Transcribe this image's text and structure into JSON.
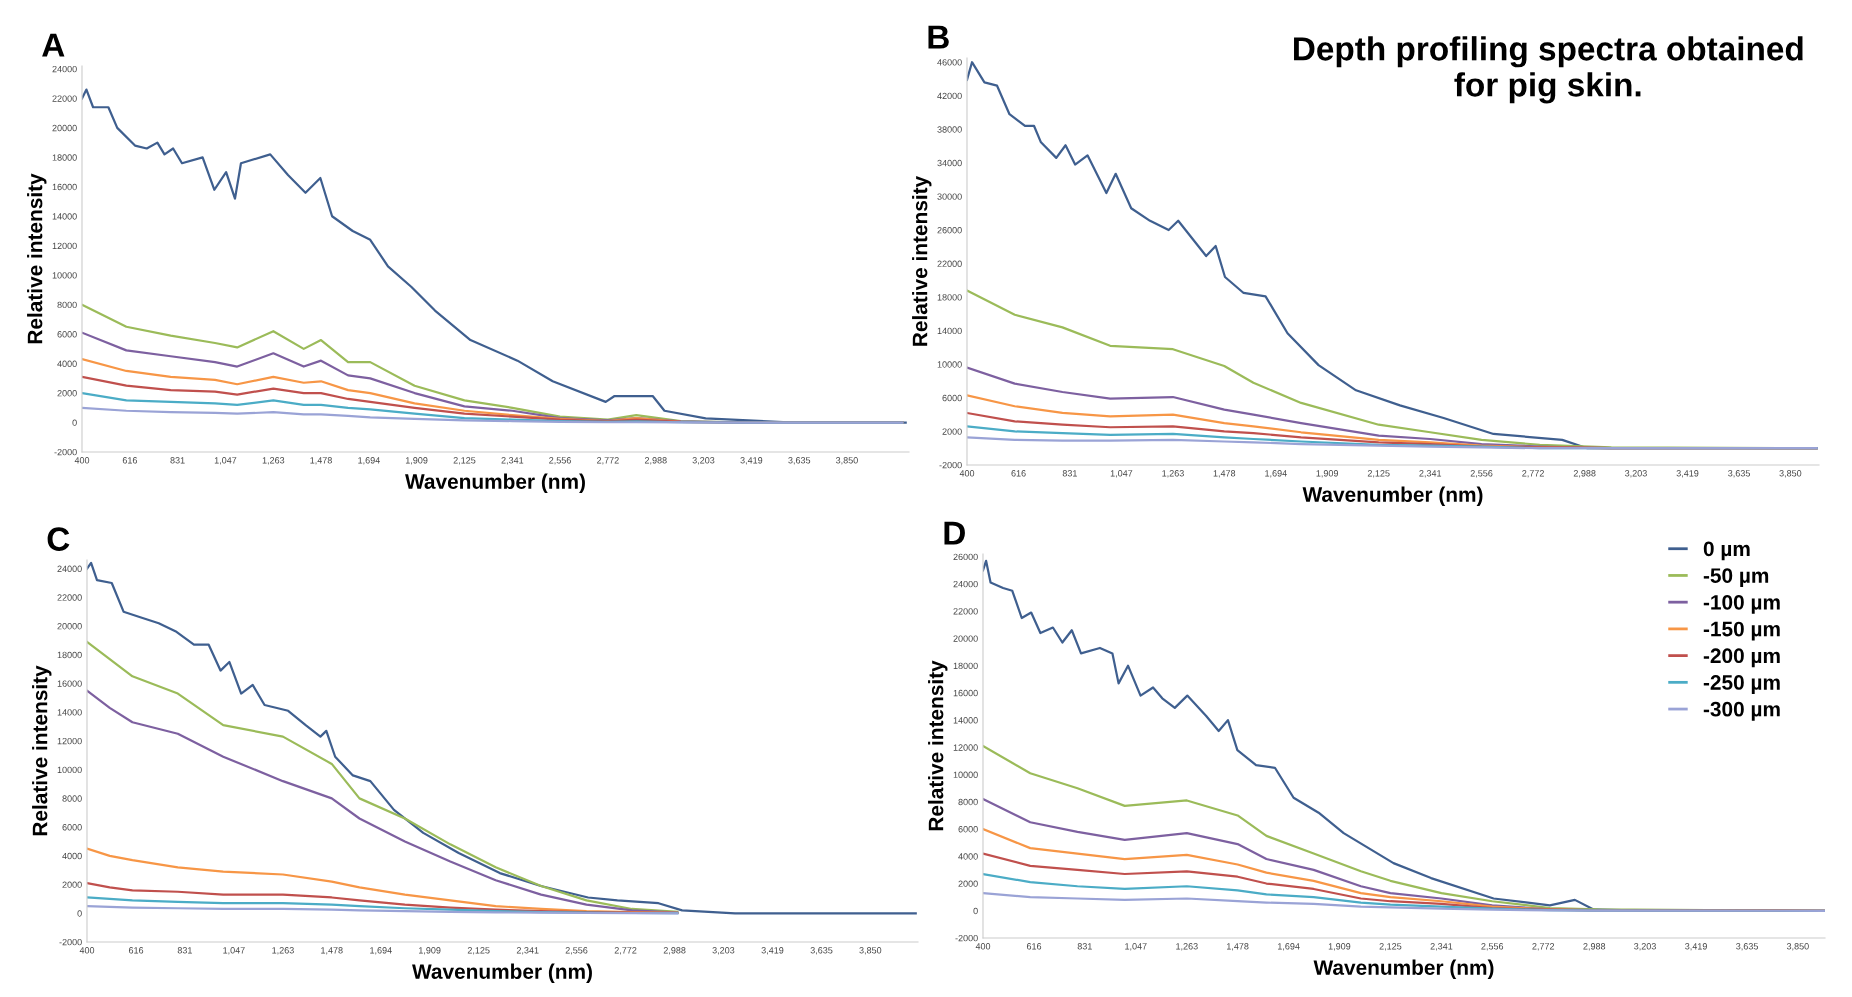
{
  "chart_data": [
    {
      "type": "line",
      "title": "A",
      "xlabel": "Wavenumber (nm)",
      "ylabel": "Relative intensity",
      "xlim": [
        400,
        4130
      ],
      "ylim": [
        -2000,
        24200
      ],
      "xticks": [
        400,
        616,
        831,
        {
          "value": 1047,
          "label": "1,047"
        },
        {
          "value": 1263,
          "label": "1,263"
        },
        {
          "value": 1478,
          "label": "1,478"
        },
        {
          "value": 1694,
          "label": "1,694"
        },
        {
          "value": 1909,
          "label": "1,909"
        },
        {
          "value": 2125,
          "label": "2,125"
        },
        {
          "value": 2341,
          "label": "2,341"
        },
        {
          "value": 2556,
          "label": "2,556"
        },
        {
          "value": 2772,
          "label": "2,772"
        },
        {
          "value": 2988,
          "label": "2,988"
        },
        {
          "value": 3203,
          "label": "3,203"
        },
        {
          "value": 3419,
          "label": "3,419"
        },
        {
          "value": 3635,
          "label": "3,635"
        },
        {
          "value": 3850,
          "label": "3,850"
        }
      ],
      "yticks": [
        -2000,
        0,
        2000,
        4000,
        6000,
        8000,
        10000,
        12000,
        14000,
        16000,
        18000,
        20000,
        22000,
        24000
      ],
      "grid": false,
      "legend": false,
      "line_style": "solid",
      "marker": "none",
      "x": [
        400,
        600,
        800,
        1000,
        1100,
        1263,
        1400,
        1478,
        1600,
        1700,
        1900,
        2125,
        2341,
        2556,
        2772,
        2900,
        3100,
        3400,
        4100
      ],
      "series": [
        {
          "color": "#3f5f8f",
          "x": [
            400,
            420,
            450,
            519,
            559,
            639,
            692,
            740,
            772,
            811,
            851,
            944,
            997,
            1050,
            1090,
            1117,
            1249,
            1329,
            1408,
            1475,
            1528,
            1621,
            1700,
            1780,
            1886,
            1992,
            2152,
            2364,
            2523,
            2762,
            2802,
            2895,
            2974,
            3027,
            3213,
            3611,
            4115
          ],
          "values": [
            22000,
            22600,
            21400,
            21400,
            20000,
            18800,
            18600,
            19000,
            18200,
            18600,
            17600,
            18000,
            15800,
            17000,
            15200,
            17600,
            18200,
            16800,
            15600,
            16600,
            14000,
            13000,
            12400,
            10600,
            9200,
            7600,
            5600,
            4200,
            2800,
            1400,
            1800,
            1800,
            1800,
            800,
            280,
            0,
            0
          ]
        },
        {
          "color": "#9bbb59",
          "values": [
            8000,
            6500,
            5900,
            5400,
            5100,
            6200,
            5000,
            5600,
            4100,
            4100,
            2500,
            1500,
            1000,
            400,
            200,
            500,
            100,
            0,
            0
          ]
        },
        {
          "color": "#7d60a0",
          "values": [
            6100,
            4900,
            4500,
            4100,
            3800,
            4700,
            3800,
            4200,
            3200,
            3000,
            2000,
            1100,
            800,
            300,
            150,
            300,
            80,
            0,
            0
          ]
        },
        {
          "color": "#f79646",
          "values": [
            4300,
            3500,
            3100,
            2900,
            2600,
            3100,
            2700,
            2800,
            2200,
            2000,
            1300,
            800,
            500,
            250,
            100,
            300,
            50,
            0,
            0
          ]
        },
        {
          "color": "#c0504d",
          "values": [
            3100,
            2500,
            2200,
            2100,
            1900,
            2300,
            2000,
            2000,
            1600,
            1400,
            1000,
            600,
            400,
            200,
            80,
            200,
            40,
            0,
            0
          ]
        },
        {
          "color": "#4bacc6",
          "values": [
            2000,
            1500,
            1400,
            1300,
            1200,
            1500,
            1200,
            1200,
            1000,
            900,
            600,
            300,
            200,
            100,
            50,
            80,
            20,
            0,
            0
          ]
        },
        {
          "color": "#9aa3d6",
          "values": [
            1000,
            800,
            700,
            650,
            600,
            700,
            550,
            550,
            450,
            350,
            250,
            150,
            100,
            50,
            20,
            20,
            10,
            0,
            0
          ]
        }
      ]
    },
    {
      "type": "line",
      "title": "B",
      "xlabel": "Wavenumber (nm)",
      "ylabel": "Relative intensity",
      "xlim": [
        400,
        3970
      ],
      "ylim": [
        -2000,
        46500
      ],
      "annotations": [
        "Depth profiling spectra obtained\nfor pig skin."
      ],
      "xticks": [
        400,
        616,
        831,
        {
          "value": 1047,
          "label": "1,047"
        },
        {
          "value": 1263,
          "label": "1,263"
        },
        {
          "value": 1478,
          "label": "1,478"
        },
        {
          "value": 1694,
          "label": "1,694"
        },
        {
          "value": 1909,
          "label": "1,909"
        },
        {
          "value": 2125,
          "label": "2,125"
        },
        {
          "value": 2341,
          "label": "2,341"
        },
        {
          "value": 2556,
          "label": "2,556"
        },
        {
          "value": 2772,
          "label": "2,772"
        },
        {
          "value": 2988,
          "label": "2,988"
        },
        {
          "value": 3203,
          "label": "3,203"
        },
        {
          "value": 3419,
          "label": "3,419"
        },
        {
          "value": 3635,
          "label": "3,635"
        },
        {
          "value": 3850,
          "label": "3,850"
        }
      ],
      "yticks": [
        -2000,
        2000,
        6000,
        10000,
        14000,
        18000,
        22000,
        26000,
        30000,
        34000,
        38000,
        42000,
        46000
      ],
      "grid": false,
      "legend": false,
      "line_style": "solid",
      "marker": "none",
      "x": [
        400,
        600,
        800,
        1000,
        1263,
        1478,
        1600,
        1800,
        2125,
        2341,
        2556,
        2800,
        3100,
        3960
      ],
      "series": [
        {
          "color": "#3f5f8f",
          "x": [
            400,
            421,
            473,
            526,
            578,
            643,
            681,
            709,
            774,
            813,
            853,
            905,
            984,
            1023,
            1088,
            1167,
            1245,
            1285,
            1402,
            1442,
            1481,
            1559,
            1651,
            1743,
            1873,
            2030,
            2214,
            2397,
            2606,
            2894,
            2999,
            3914,
            3960
          ],
          "values": [
            43900,
            46000,
            43600,
            43200,
            39800,
            38400,
            38400,
            36500,
            34600,
            36100,
            33800,
            34900,
            30400,
            32700,
            28600,
            27100,
            26000,
            27100,
            22900,
            24100,
            20400,
            18500,
            18100,
            13700,
            9900,
            6900,
            5100,
            3600,
            1700,
            1000,
            0,
            0,
            0
          ]
        },
        {
          "color": "#9bbb59",
          "values": [
            18800,
            15900,
            14400,
            12200,
            11800,
            9800,
            7800,
            5400,
            2800,
            1900,
            1000,
            400,
            100,
            0
          ]
        },
        {
          "color": "#7d60a0",
          "values": [
            9600,
            7700,
            6700,
            5900,
            6100,
            4600,
            4000,
            3000,
            1500,
            1100,
            500,
            200,
            0,
            0
          ]
        },
        {
          "color": "#f79646",
          "values": [
            6300,
            5000,
            4200,
            3800,
            4000,
            3000,
            2600,
            1900,
            1000,
            700,
            300,
            100,
            0,
            0
          ]
        },
        {
          "color": "#c0504d",
          "values": [
            4200,
            3200,
            2800,
            2500,
            2600,
            2000,
            1800,
            1300,
            700,
            500,
            200,
            100,
            0,
            0
          ]
        },
        {
          "color": "#4bacc6",
          "values": [
            2600,
            2000,
            1800,
            1600,
            1700,
            1300,
            1100,
            800,
            400,
            300,
            200,
            0,
            0,
            0
          ]
        },
        {
          "color": "#9aa3d6",
          "values": [
            1300,
            1000,
            900,
            900,
            1000,
            800,
            700,
            500,
            300,
            200,
            100,
            0,
            0,
            0
          ]
        }
      ]
    },
    {
      "type": "line",
      "title": "C",
      "xlabel": "Wavenumber (nm)",
      "ylabel": "Relative intensity",
      "xlim": [
        400,
        4060
      ],
      "ylim": [
        -2000,
        24600
      ],
      "xticks": [
        400,
        616,
        831,
        {
          "value": 1047,
          "label": "1,047"
        },
        {
          "value": 1263,
          "label": "1,263"
        },
        {
          "value": 1478,
          "label": "1,478"
        },
        {
          "value": 1694,
          "label": "1,694"
        },
        {
          "value": 1909,
          "label": "1,909"
        },
        {
          "value": 2125,
          "label": "2,125"
        },
        {
          "value": 2341,
          "label": "2,341"
        },
        {
          "value": 2556,
          "label": "2,556"
        },
        {
          "value": 2772,
          "label": "2,772"
        },
        {
          "value": 2988,
          "label": "2,988"
        },
        {
          "value": 3203,
          "label": "3,203"
        },
        {
          "value": 3419,
          "label": "3,419"
        },
        {
          "value": 3635,
          "label": "3,635"
        },
        {
          "value": 3850,
          "label": "3,850"
        }
      ],
      "yticks": [
        -2000,
        0,
        2000,
        4000,
        6000,
        8000,
        10000,
        12000,
        14000,
        16000,
        18000,
        20000,
        22000,
        24000
      ],
      "grid": false,
      "legend": false,
      "line_style": "solid",
      "marker": "none",
      "x": [
        400,
        500,
        600,
        800,
        1000,
        1263,
        1478,
        1600,
        1800,
        2000,
        2200,
        2400,
        2600,
        2800,
        3000
      ],
      "series": [
        {
          "color": "#3f5f8f",
          "x": [
            400,
            418,
            444,
            509,
            561,
            638,
            716,
            794,
            871,
            936,
            988,
            1027,
            1079,
            1130,
            1182,
            1286,
            1363,
            1428,
            1454,
            1493,
            1571,
            1648,
            1752,
            1881,
            2037,
            2218,
            2399,
            2607,
            2736,
            2917,
            3021,
            3254,
            4050
          ],
          "values": [
            24000,
            24400,
            23200,
            23000,
            21000,
            20600,
            20200,
            19600,
            18700,
            18700,
            16900,
            17500,
            15300,
            15900,
            14500,
            14100,
            13100,
            12300,
            12700,
            10900,
            9600,
            9200,
            7200,
            5600,
            4200,
            2800,
            1900,
            1100,
            900,
            700,
            200,
            0,
            0
          ]
        },
        {
          "color": "#9bbb59",
          "values": [
            18900,
            17700,
            16500,
            15300,
            13100,
            12300,
            10400,
            8000,
            6600,
            4800,
            3200,
            1900,
            900,
            300,
            100
          ]
        },
        {
          "color": "#7d60a0",
          "values": [
            15500,
            14300,
            13300,
            12500,
            10900,
            9200,
            8000,
            6600,
            5000,
            3600,
            2300,
            1300,
            600,
            200,
            50
          ]
        },
        {
          "color": "#f79646",
          "values": [
            4500,
            4000,
            3700,
            3200,
            2900,
            2700,
            2200,
            1800,
            1300,
            900,
            500,
            300,
            150,
            80,
            30
          ]
        },
        {
          "color": "#c0504d",
          "values": [
            2100,
            1800,
            1600,
            1500,
            1300,
            1300,
            1100,
            900,
            600,
            400,
            250,
            150,
            80,
            40,
            20
          ]
        },
        {
          "color": "#4bacc6",
          "values": [
            1100,
            1000,
            900,
            800,
            700,
            700,
            600,
            500,
            350,
            250,
            150,
            80,
            40,
            20,
            10
          ]
        },
        {
          "color": "#9aa3d6",
          "values": [
            500,
            450,
            400,
            350,
            300,
            300,
            250,
            200,
            150,
            100,
            60,
            40,
            20,
            10,
            0
          ]
        }
      ]
    },
    {
      "type": "line",
      "title": "D",
      "xlabel": "Wavenumber (nm)",
      "ylabel": "Relative intensity",
      "xlim": [
        400,
        3965
      ],
      "ylim": [
        -2000,
        26200
      ],
      "xticks": [
        400,
        616,
        831,
        {
          "value": 1047,
          "label": "1,047"
        },
        {
          "value": 1263,
          "label": "1,263"
        },
        {
          "value": 1478,
          "label": "1,478"
        },
        {
          "value": 1694,
          "label": "1,694"
        },
        {
          "value": 1909,
          "label": "1,909"
        },
        {
          "value": 2125,
          "label": "2,125"
        },
        {
          "value": 2341,
          "label": "2,341"
        },
        {
          "value": 2556,
          "label": "2,556"
        },
        {
          "value": 2772,
          "label": "2,772"
        },
        {
          "value": 2988,
          "label": "2,988"
        },
        {
          "value": 3203,
          "label": "3,203"
        },
        {
          "value": 3419,
          "label": "3,419"
        },
        {
          "value": 3635,
          "label": "3,635"
        },
        {
          "value": 3850,
          "label": "3,850"
        }
      ],
      "yticks": [
        -2000,
        0,
        2000,
        4000,
        6000,
        8000,
        10000,
        12000,
        14000,
        16000,
        18000,
        20000,
        22000,
        24000,
        26000
      ],
      "grid": false,
      "legend": "right",
      "line_style": "solid",
      "marker": "none",
      "x": [
        400,
        600,
        800,
        1000,
        1263,
        1478,
        1600,
        1800,
        2000,
        2125,
        2341,
        2556,
        2800,
        3000,
        3960
      ],
      "series": [
        {
          "name": "0 µm",
          "color": "#3f5f8f",
          "x": [
            400,
            413,
            432,
            485,
            524,
            564,
            604,
            643,
            696,
            736,
            776,
            815,
            895,
            948,
            974,
            1014,
            1067,
            1120,
            1159,
            1212,
            1265,
            1345,
            1398,
            1437,
            1477,
            1556,
            1636,
            1715,
            1821,
            1927,
            2138,
            2297,
            2562,
            2800,
            2906,
            2985,
            3223,
            3960
          ],
          "values": [
            25000,
            25700,
            24100,
            23700,
            23500,
            21500,
            21900,
            20400,
            20800,
            19700,
            20600,
            18900,
            19300,
            18900,
            16700,
            18000,
            15800,
            16400,
            15600,
            14900,
            15800,
            14300,
            13200,
            14000,
            11800,
            10700,
            10500,
            8300,
            7200,
            5700,
            3500,
            2400,
            900,
            400,
            800,
            100,
            0,
            0
          ]
        },
        {
          "name": "-50 µm",
          "color": "#9bbb59",
          "values": [
            12100,
            10100,
            9000,
            7700,
            8100,
            7000,
            5500,
            4200,
            2900,
            2200,
            1300,
            700,
            200,
            100,
            0
          ]
        },
        {
          "name": "-100 µm",
          "color": "#7d60a0",
          "values": [
            8200,
            6500,
            5800,
            5200,
            5700,
            4900,
            3800,
            3000,
            1800,
            1300,
            900,
            400,
            100,
            50,
            0
          ]
        },
        {
          "name": "-150 µm",
          "color": "#f79646",
          "values": [
            6000,
            4600,
            4200,
            3800,
            4100,
            3400,
            2800,
            2200,
            1300,
            1000,
            700,
            300,
            100,
            30,
            0
          ]
        },
        {
          "name": "-200 µm",
          "color": "#c0504d",
          "values": [
            4200,
            3300,
            3000,
            2700,
            2900,
            2500,
            2000,
            1600,
            900,
            700,
            500,
            200,
            80,
            20,
            0
          ]
        },
        {
          "name": "-250 µm",
          "color": "#4bacc6",
          "values": [
            2700,
            2100,
            1800,
            1600,
            1800,
            1500,
            1200,
            1000,
            600,
            450,
            300,
            150,
            50,
            10,
            0
          ]
        },
        {
          "name": "-300 µm",
          "color": "#9aa3d6",
          "values": [
            1300,
            1000,
            900,
            800,
            900,
            700,
            600,
            500,
            300,
            250,
            150,
            80,
            30,
            10,
            0
          ]
        }
      ]
    }
  ]
}
